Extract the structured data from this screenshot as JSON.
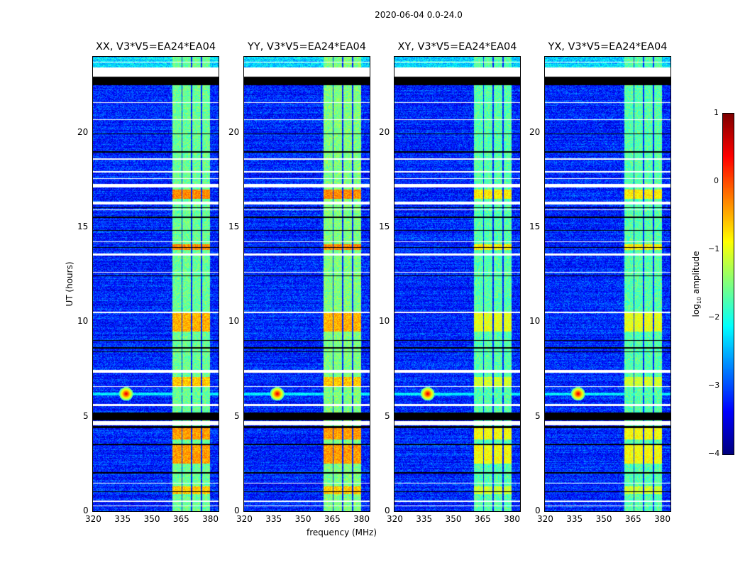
{
  "suptitle": "2020-06-04 0.0-24.0",
  "chart_data": {
    "type": "heatmap",
    "title": "2020-06-04 0.0-24.0",
    "xlabel": "frequency (MHz)",
    "ylabel": "UT (hours)",
    "xlim": [
      320,
      384.3
    ],
    "ylim": [
      0,
      24
    ],
    "xticks": [
      "320",
      "335",
      "350",
      "365",
      "380"
    ],
    "yticks": [
      "0",
      "5",
      "10",
      "15",
      "20"
    ],
    "panels": [
      {
        "title": "XX, V3*V5=EA24*EA04",
        "band_level": -1.6
      },
      {
        "title": "YY, V3*V5=EA24*EA04",
        "band_level": -1.5
      },
      {
        "title": "XY, V3*V5=EA24*EA04",
        "band_level": -1.7
      },
      {
        "title": "YX, V3*V5=EA24*EA04",
        "band_level": -1.7
      }
    ],
    "background_level": -3.2,
    "rfi_band_mhz": [
      360.7,
      380.0
    ],
    "band_gaps_mhz": [
      365.6,
      370.4,
      375.5
    ],
    "hot_intervals_hours": [
      [
        16.5,
        17.0,
        -0.3
      ],
      [
        13.8,
        14.1,
        -0.3
      ],
      [
        9.5,
        10.5,
        -0.5
      ],
      [
        6.6,
        7.1,
        -0.6
      ],
      [
        3.8,
        4.4,
        -0.4
      ],
      [
        2.5,
        3.5,
        -0.4
      ],
      [
        0.9,
        1.3,
        -0.6
      ]
    ],
    "hot_spot": {
      "freq_mhz": 337,
      "hour": 6.2,
      "level": 0.6
    },
    "flag_white_hours": [
      [
        22.95,
        23.45
      ],
      [
        23.7,
        23.75
      ],
      [
        21.55,
        21.6
      ],
      [
        20.65,
        20.7
      ],
      [
        18.55,
        18.65
      ],
      [
        17.9,
        17.95
      ],
      [
        17.55,
        17.6
      ],
      [
        17.1,
        17.3
      ],
      [
        16.2,
        16.35
      ],
      [
        15.9,
        15.95
      ],
      [
        14.2,
        14.25
      ],
      [
        13.5,
        13.6
      ],
      [
        12.6,
        12.65
      ],
      [
        10.45,
        10.55
      ],
      [
        7.3,
        7.45
      ],
      [
        6.55,
        6.6
      ],
      [
        5.55,
        5.65
      ],
      [
        4.55,
        4.75
      ],
      [
        1.45,
        1.5
      ],
      [
        0.5,
        0.55
      ],
      [
        0.25,
        0.3
      ]
    ],
    "flag_black_hours": [
      [
        22.5,
        22.95
      ],
      [
        19.9,
        19.95
      ],
      [
        18.95,
        19.0
      ],
      [
        16.0,
        16.05
      ],
      [
        15.5,
        15.55
      ],
      [
        14.8,
        14.85
      ],
      [
        13.9,
        13.95
      ],
      [
        12.4,
        12.45
      ],
      [
        9.0,
        9.05
      ],
      [
        8.6,
        8.65
      ],
      [
        8.4,
        8.45
      ],
      [
        4.8,
        5.2
      ],
      [
        4.4,
        4.5
      ],
      [
        3.5,
        3.55
      ],
      [
        2.0,
        2.05
      ],
      [
        1.0,
        1.05
      ]
    ],
    "colorbar": {
      "label": "log",
      "label_sub": "10",
      "label_tail": " amplitude",
      "range": [
        -4,
        1
      ],
      "ticks": [
        "1",
        "0",
        "−1",
        "−2",
        "−3",
        "−4"
      ],
      "colormap": "jet"
    }
  }
}
